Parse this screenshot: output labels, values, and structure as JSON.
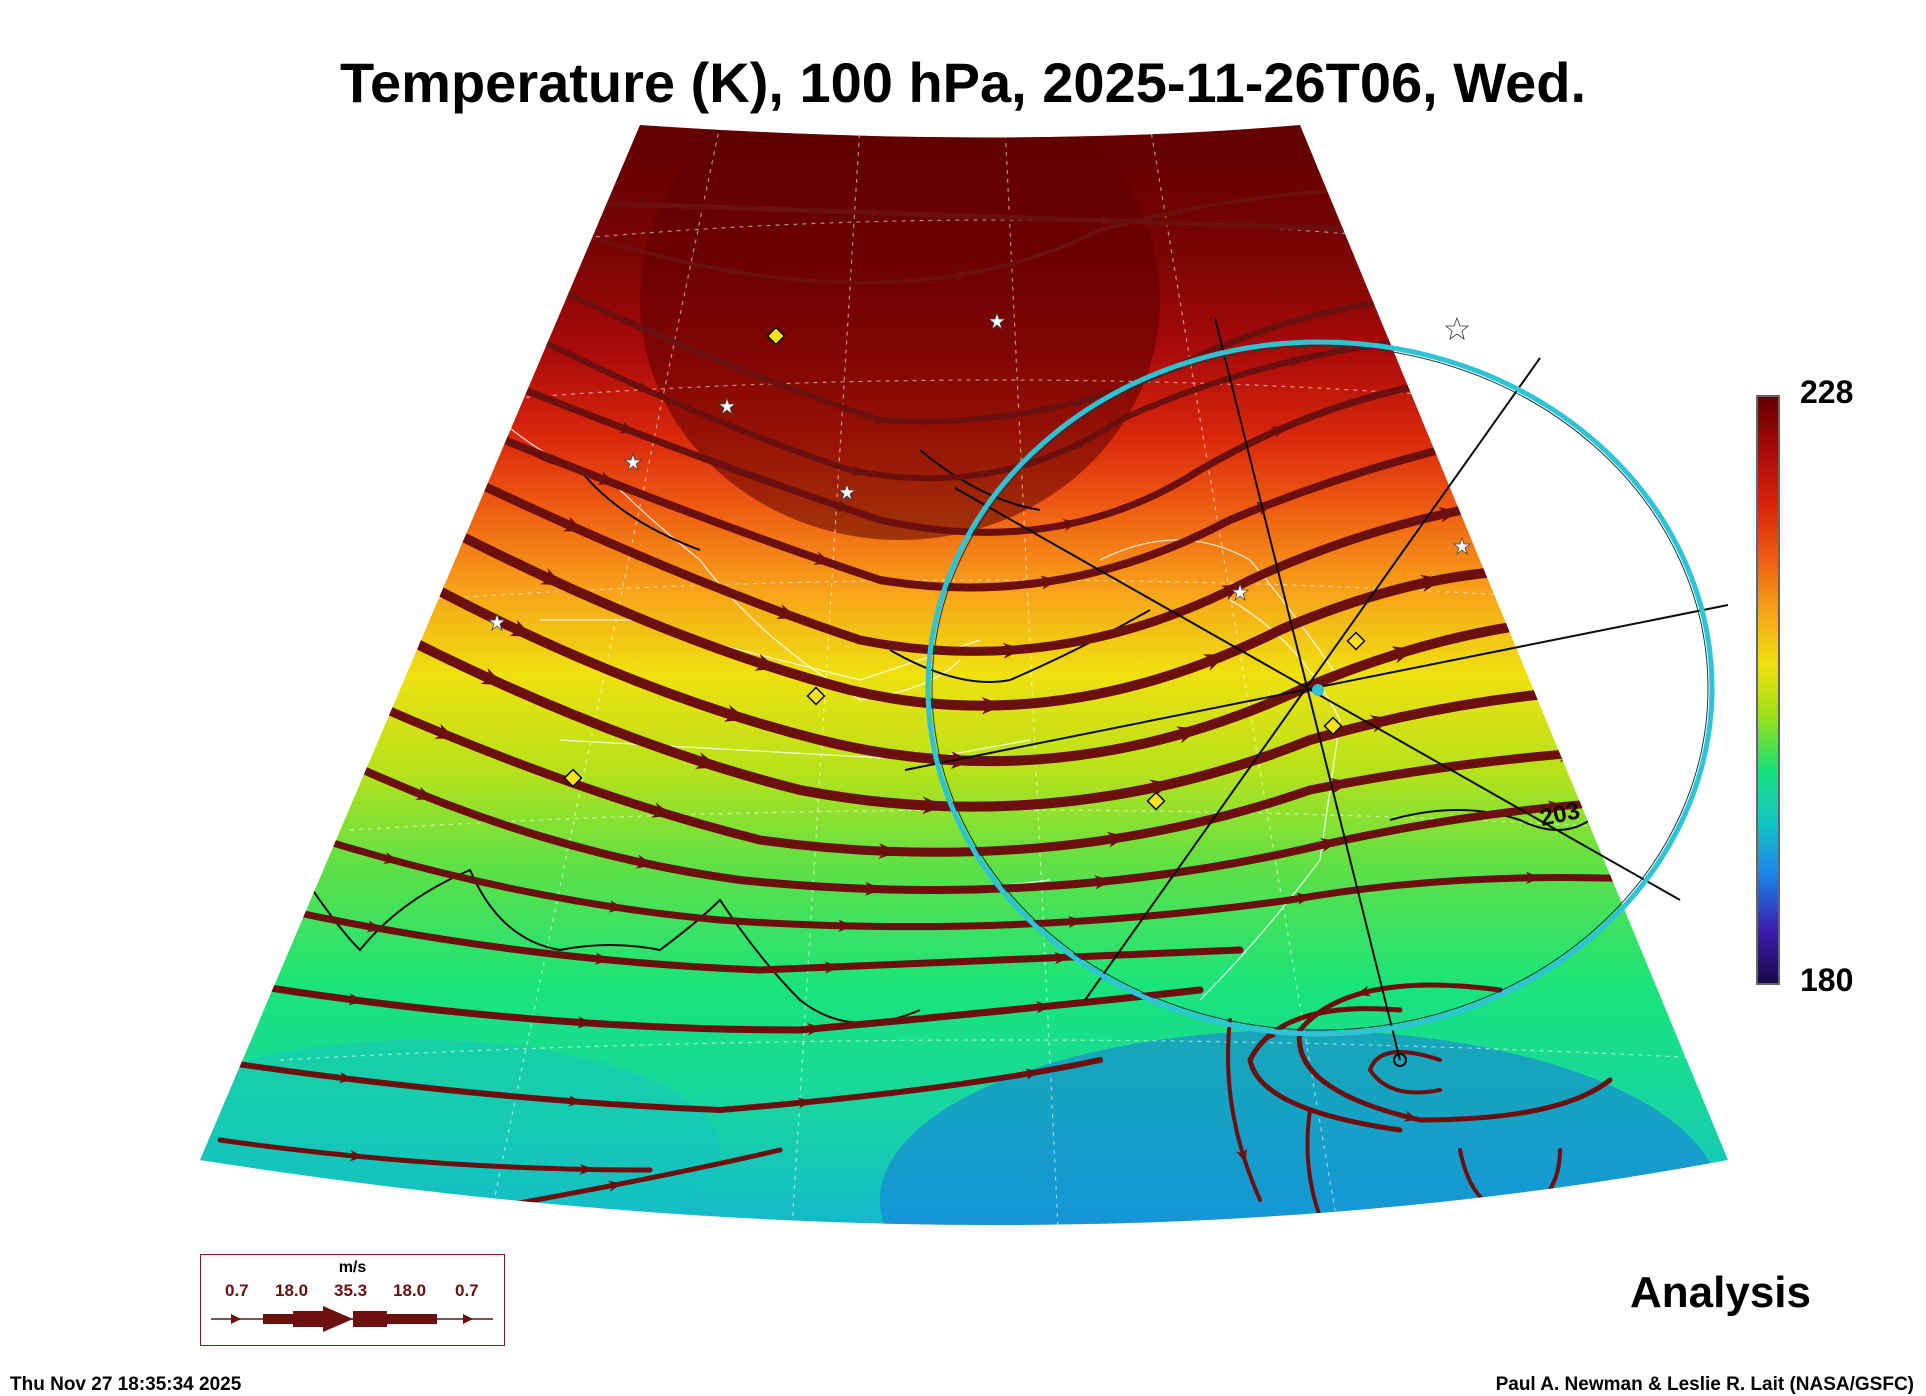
{
  "title": "Temperature (K), 100 hPa, 2025-11-26T06, Wed.",
  "colorbar": {
    "max_label": "228",
    "min_label": "180",
    "colors": [
      "#1a0a4a",
      "#3a1fb0",
      "#1e7fe6",
      "#14c4c8",
      "#18e07a",
      "#9be01a",
      "#f0e010",
      "#f7a21a",
      "#ef5a12",
      "#d8220c",
      "#a80a0a",
      "#620000"
    ]
  },
  "contour_label": "203",
  "analysis_label": "Analysis",
  "wind_legend": {
    "unit": "m/s",
    "values": [
      "0.7",
      "18.0",
      "35.3",
      "18.0",
      "0.7"
    ],
    "arrow_color": "#6b0f0f"
  },
  "timestamp": "Thu Nov 27 18:35:34 2025",
  "credit": "Paul A. Newman & Leslie R. Lait (NASA/GSFC)",
  "colors": {
    "streamline": "#6b0f0f",
    "ring": "#2ec4d6",
    "marker_diamond": "#ffe31a",
    "marker_star": "#ffffff"
  }
}
